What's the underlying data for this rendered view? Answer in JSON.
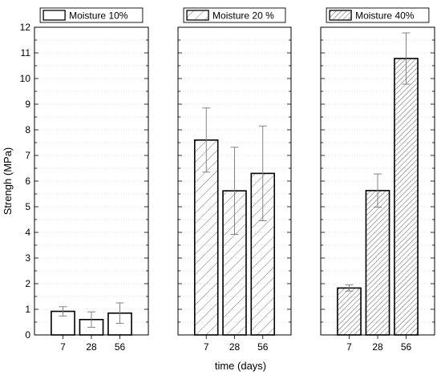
{
  "chart_data": {
    "type": "bar",
    "ylabel": "Strengh (MPa)",
    "xlabel": "time (days)",
    "ylim": [
      0,
      12
    ],
    "yticks": [
      0,
      1,
      2,
      3,
      4,
      5,
      6,
      7,
      8,
      9,
      10,
      11,
      12
    ],
    "y_minor_step": 0.5,
    "grid": "horizontal light dotted",
    "panels": [
      {
        "legend": "Moisture 10%",
        "fill": "none",
        "categories": [
          "7",
          "28",
          "56"
        ],
        "values": [
          0.92,
          0.6,
          0.85
        ],
        "errors": [
          0.18,
          0.3,
          0.4
        ]
      },
      {
        "legend": "Moisture 20 %",
        "fill": "sparse-diagonal-hatch",
        "categories": [
          "7",
          "28",
          "56"
        ],
        "values": [
          7.6,
          5.62,
          6.3
        ],
        "errors": [
          1.25,
          1.7,
          1.85
        ]
      },
      {
        "legend": "Moisture 40%",
        "fill": "dense-diagonal-hatch",
        "categories": [
          "7",
          "28",
          "56"
        ],
        "values": [
          1.83,
          5.63,
          10.78
        ],
        "errors": [
          0.12,
          0.65,
          1.0
        ]
      }
    ]
  }
}
